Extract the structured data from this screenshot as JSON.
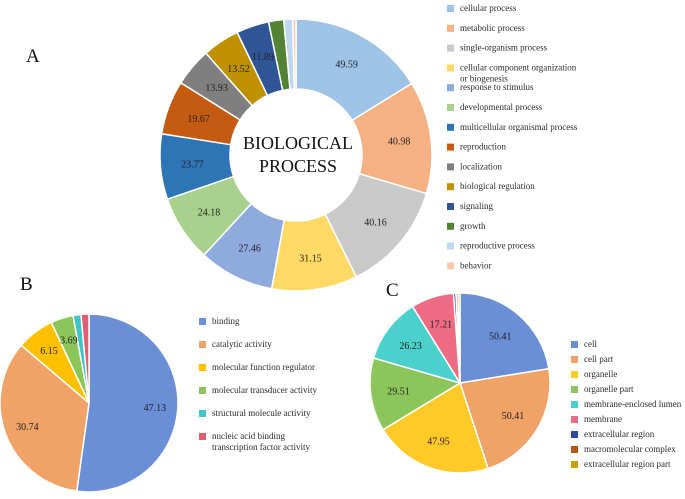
{
  "chart_data": [
    {
      "type": "donut",
      "panel_label": "A",
      "title": "BIOLOGICAL PROCESS",
      "center_text": [
        "BIOLOGICAL",
        "PROCESS"
      ],
      "categories": [
        "cellular process",
        "metabolic process",
        "single-organism process",
        "cellular component organization or biogenesis",
        "response to stimulus",
        "developmental process",
        "multicellular organismal process",
        "reproduction",
        "localization",
        "biological regulation",
        "signaling",
        "growth",
        "reproductive process",
        "behavior"
      ],
      "legend_lines": [
        [
          "cellular process"
        ],
        [
          "metabolic process"
        ],
        [
          "single-organism process"
        ],
        [
          "cellular component organization",
          "or biogenesis"
        ],
        [
          "response to stimulus"
        ],
        [
          "developmental process"
        ],
        [
          "multicellular organismal process"
        ],
        [
          "reproduction"
        ],
        [
          "localization"
        ],
        [
          "biological regulation"
        ],
        [
          "signaling"
        ],
        [
          "growth"
        ],
        [
          "reproductive process"
        ],
        [
          "behavior"
        ]
      ],
      "values": [
        49.59,
        40.98,
        40.16,
        31.15,
        27.46,
        24.18,
        23.77,
        19.67,
        13.93,
        13.52,
        11.89,
        5.5,
        3.2,
        1.2
      ],
      "data_labels": [
        "49.59",
        "40.98",
        "40.16",
        "31.15",
        "27.46",
        "24.18",
        "23.77",
        "19.67",
        "13.93",
        "13.52",
        "11.89",
        "",
        "",
        ""
      ],
      "colors": [
        "#9dc3e6",
        "#f4b183",
        "#c9c9c9",
        "#ffd966",
        "#8faadc",
        "#a9d18e",
        "#2e75b6",
        "#c55a11",
        "#7f7f7f",
        "#bf9000",
        "#2f5597",
        "#548235",
        "#bdd7ee",
        "#f8cbad"
      ],
      "legend_position": "right"
    },
    {
      "type": "pie",
      "panel_label": "B",
      "categories": [
        "binding",
        "catalytic activity",
        "molecular function regulator",
        "molecular transducer activity",
        "structural molecule activity",
        "nucleic acid binding transcription factor activity"
      ],
      "legend_lines": [
        [
          "binding"
        ],
        [
          "catalytic activity"
        ],
        [
          "molecular function regulator"
        ],
        [
          "molecular transducer activity"
        ],
        [
          "structural molecule activity"
        ],
        [
          "nucleic acid binding",
          "transcription factor activity"
        ]
      ],
      "values": [
        47.13,
        30.74,
        6.15,
        3.69,
        1.3,
        1.3
      ],
      "data_labels": [
        "47.13",
        "30.74",
        "6.15",
        "3.69",
        "",
        ""
      ],
      "colors": [
        "#6a8fd6",
        "#f0a267",
        "#ffc000",
        "#8cc65a",
        "#3cc6c6",
        "#e45d74"
      ],
      "legend_position": "right"
    },
    {
      "type": "pie",
      "panel_label": "C",
      "categories": [
        "cell",
        "cell part",
        "organelle",
        "organelle part",
        "membrane-enclosed lumen",
        "membrane",
        "extracellular region",
        "macromolecular complex",
        "extracellular region part"
      ],
      "legend_lines": [
        [
          "cell"
        ],
        [
          "cell part"
        ],
        [
          "organelle"
        ],
        [
          "organelle part"
        ],
        [
          "membrane-enclosed lumen"
        ],
        [
          "membrane"
        ],
        [
          "extracellular region"
        ],
        [
          "macromolecular complex"
        ],
        [
          "extracellular region part"
        ]
      ],
      "values": [
        50.41,
        50.41,
        47.95,
        29.51,
        26.23,
        17.21,
        1.0,
        0.8,
        0.8
      ],
      "data_labels": [
        "50.41",
        "50.41",
        "47.95",
        "29.51",
        "26.23",
        "17.21",
        "",
        "",
        ""
      ],
      "colors": [
        "#6a8fd6",
        "#f0a267",
        "#ffc928",
        "#8cc65a",
        "#4cd0cc",
        "#ee6b83",
        "#2e4a9e",
        "#b8541a",
        "#c9a000"
      ],
      "legend_position": "right"
    }
  ]
}
